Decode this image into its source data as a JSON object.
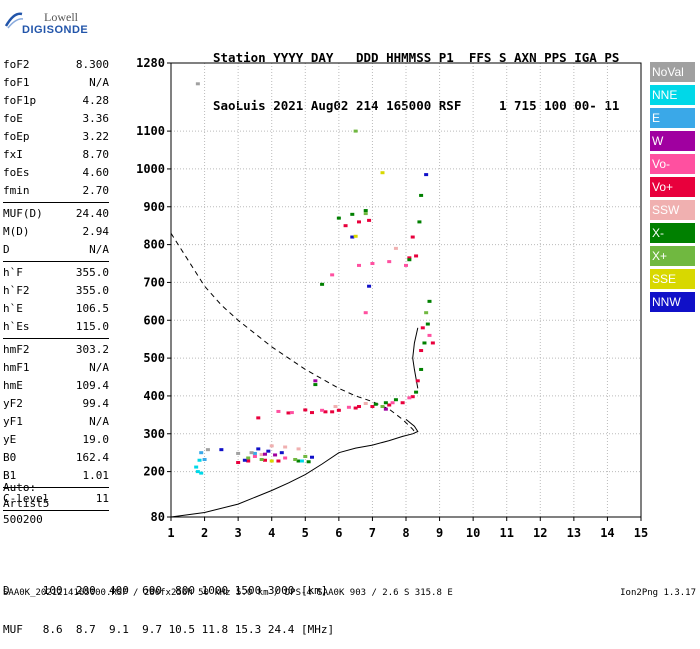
{
  "logo": {
    "line1": "Lowell",
    "line2": "DIGISONDE"
  },
  "header": {
    "line1": "Station YYYY DAY   DDD HHMMSS P1  FFS S AXN PPS IGA PS",
    "line2": "SaoLuis 2021 Aug02 214 165000 RSF     1 715 100 00- 11"
  },
  "params": [
    {
      "label": "foF2",
      "value": "8.300"
    },
    {
      "label": "foF1",
      "value": "N/A"
    },
    {
      "label": "foF1p",
      "value": "4.28"
    },
    {
      "label": "foE",
      "value": "3.36"
    },
    {
      "label": "foEp",
      "value": "3.22"
    },
    {
      "label": "fxI",
      "value": "8.70"
    },
    {
      "label": "foEs",
      "value": "4.60"
    },
    {
      "label": "fmin",
      "value": "2.70"
    },
    {
      "sep": true
    },
    {
      "label": "MUF(D)",
      "value": "24.40"
    },
    {
      "label": "M(D)",
      "value": "2.94"
    },
    {
      "label": "D",
      "value": "N/A"
    },
    {
      "sep": true
    },
    {
      "label": "h`F",
      "value": "355.0"
    },
    {
      "label": "h`F2",
      "value": "355.0"
    },
    {
      "label": "h`E",
      "value": "106.5"
    },
    {
      "label": "h`Es",
      "value": "115.0"
    },
    {
      "sep": true
    },
    {
      "label": "hmF2",
      "value": "303.2"
    },
    {
      "label": "hmF1",
      "value": "N/A"
    },
    {
      "label": "hmE",
      "value": "109.4"
    },
    {
      "label": "yF2",
      "value": "99.4"
    },
    {
      "label": "yF1",
      "value": "N/A"
    },
    {
      "label": "yE",
      "value": "19.0"
    },
    {
      "label": "B0",
      "value": "162.4"
    },
    {
      "label": "B1",
      "value": "1.01"
    },
    {
      "sep": true
    },
    {
      "label": "C-level",
      "value": "11"
    },
    {
      "sep": true
    }
  ],
  "auto": {
    "l1": "Auto:",
    "l2": "Artist5",
    "l3": "500200"
  },
  "legend": [
    {
      "label": "NoVal",
      "color": "#a0a0a0"
    },
    {
      "label": "NNE",
      "color": "#00d8e8"
    },
    {
      "label": "E",
      "color": "#3aa8e8"
    },
    {
      "label": "W",
      "color": "#a000a0"
    },
    {
      "label": "Vo-",
      "color": "#ff50a0"
    },
    {
      "label": "Vo+",
      "color": "#e8003c"
    },
    {
      "label": "SSW",
      "color": "#f0b0b0"
    },
    {
      "label": "X-",
      "color": "#008000"
    },
    {
      "label": "X+",
      "color": "#70b840"
    },
    {
      "label": "SSE",
      "color": "#d8d800"
    },
    {
      "label": "NNW",
      "color": "#1010c8"
    }
  ],
  "muf": {
    "line1": "D     100  200  400  600  800 1000 1500 3000 [km]",
    "line2": "MUF   8.6  8.7  9.1  9.7 10.5 11.8 15.3 24.4 [MHz]"
  },
  "footer": "SAA0K_2021214165000.RSF / 280fx256h 50 kHz 5.0 km / DPS-4 SAA0K 903 / 2.6 S 315.8 E",
  "version": "Ion2Png 1.3.17",
  "chart_data": {
    "type": "scatter",
    "x_ticks": [
      1,
      2,
      3,
      4,
      5,
      6,
      7,
      8,
      9,
      10,
      11,
      12,
      13,
      14,
      15
    ],
    "y_ticks": [
      80,
      200,
      300,
      400,
      500,
      600,
      700,
      800,
      900,
      1000,
      1100,
      1280
    ],
    "xlim": [
      1,
      15
    ],
    "ylim": [
      80,
      1280
    ],
    "grid": true,
    "series": [
      {
        "name": "Vo+",
        "points": [
          [
            3.6,
            342
          ],
          [
            4.5,
            355
          ],
          [
            5.2,
            356
          ],
          [
            5.6,
            358
          ],
          [
            6.0,
            362
          ],
          [
            6.5,
            368
          ],
          [
            7.0,
            372
          ],
          [
            7.5,
            376
          ],
          [
            7.9,
            382
          ],
          [
            8.2,
            398
          ],
          [
            8.35,
            440
          ],
          [
            8.45,
            520
          ],
          [
            8.5,
            580
          ],
          [
            5.0,
            363
          ],
          [
            5.8,
            358
          ],
          [
            6.6,
            372
          ],
          [
            3.0,
            224
          ],
          [
            3.3,
            228
          ],
          [
            3.8,
            230
          ],
          [
            4.2,
            228
          ],
          [
            6.2,
            850
          ],
          [
            6.6,
            860
          ],
          [
            6.9,
            864
          ],
          [
            8.2,
            820
          ],
          [
            8.3,
            770
          ],
          [
            8.1,
            765
          ],
          [
            8.8,
            540
          ]
        ]
      },
      {
        "name": "X-",
        "points": [
          [
            8.3,
            410
          ],
          [
            8.45,
            470
          ],
          [
            8.55,
            540
          ],
          [
            8.65,
            590
          ],
          [
            8.7,
            650
          ],
          [
            8.4,
            860
          ],
          [
            8.45,
            930
          ],
          [
            7.1,
            378
          ],
          [
            7.4,
            382
          ],
          [
            7.7,
            390
          ],
          [
            4.8,
            228
          ],
          [
            5.1,
            226
          ],
          [
            5.3,
            430
          ],
          [
            6.0,
            870
          ],
          [
            6.4,
            880
          ],
          [
            6.8,
            890
          ],
          [
            5.5,
            695
          ],
          [
            8.1,
            760
          ]
        ]
      },
      {
        "name": "Vo-",
        "points": [
          [
            4.2,
            359
          ],
          [
            4.6,
            356
          ],
          [
            5.5,
            362
          ],
          [
            6.3,
            370
          ],
          [
            7.6,
            382
          ],
          [
            8.1,
            395
          ],
          [
            6.6,
            745
          ],
          [
            7.0,
            750
          ],
          [
            7.5,
            755
          ],
          [
            8.0,
            745
          ],
          [
            6.8,
            620
          ],
          [
            3.5,
            240
          ],
          [
            4.4,
            236
          ],
          [
            5.8,
            720
          ],
          [
            8.7,
            560
          ]
        ]
      },
      {
        "name": "SSW",
        "points": [
          [
            4.0,
            268
          ],
          [
            4.4,
            265
          ],
          [
            4.8,
            260
          ],
          [
            5.9,
            372
          ],
          [
            6.8,
            380
          ],
          [
            7.7,
            790
          ],
          [
            3.7,
            245
          ]
        ]
      },
      {
        "name": "NNW",
        "points": [
          [
            3.6,
            260
          ],
          [
            3.9,
            254
          ],
          [
            4.3,
            250
          ],
          [
            3.2,
            230
          ],
          [
            2.5,
            258
          ],
          [
            5.2,
            238
          ],
          [
            6.9,
            690
          ],
          [
            8.6,
            985
          ],
          [
            6.4,
            820
          ]
        ]
      },
      {
        "name": "X+",
        "points": [
          [
            3.3,
            236
          ],
          [
            3.7,
            232
          ],
          [
            4.7,
            232
          ],
          [
            5.0,
            240
          ],
          [
            6.5,
            1100
          ],
          [
            6.8,
            882
          ],
          [
            7.3,
            372
          ],
          [
            8.6,
            620
          ]
        ]
      },
      {
        "name": "NNE",
        "points": [
          [
            1.8,
            200
          ],
          [
            1.9,
            196
          ],
          [
            1.85,
            230
          ],
          [
            1.75,
            212
          ],
          [
            4.9,
            228
          ]
        ]
      },
      {
        "name": "E",
        "points": [
          [
            1.9,
            250
          ],
          [
            2.0,
            232
          ],
          [
            3.5,
            248
          ]
        ]
      },
      {
        "name": "W",
        "points": [
          [
            3.8,
            246
          ],
          [
            4.1,
            244
          ],
          [
            5.3,
            440
          ],
          [
            7.4,
            365
          ]
        ]
      },
      {
        "name": "SSE",
        "points": [
          [
            7.3,
            990
          ],
          [
            6.5,
            822
          ],
          [
            4.0,
            228
          ]
        ]
      },
      {
        "name": "NoVal",
        "points": [
          [
            1.8,
            1225
          ],
          [
            2.1,
            258
          ],
          [
            3.0,
            248
          ],
          [
            3.4,
            250
          ]
        ]
      }
    ],
    "traces": [
      {
        "style": "solid",
        "role": "trace",
        "points": [
          [
            8.35,
            420
          ],
          [
            8.25,
            470
          ],
          [
            8.2,
            500
          ],
          [
            8.25,
            540
          ],
          [
            8.35,
            580
          ]
        ]
      },
      {
        "style": "solid",
        "role": "true height profile",
        "points": [
          [
            1,
            80
          ],
          [
            2,
            92
          ],
          [
            3,
            114
          ],
          [
            4,
            150
          ],
          [
            4.5,
            170
          ],
          [
            5,
            192
          ],
          [
            5.5,
            220
          ],
          [
            6,
            250
          ],
          [
            6.5,
            262
          ],
          [
            7,
            270
          ],
          [
            7.5,
            282
          ],
          [
            7.9,
            293
          ],
          [
            8.2,
            300
          ],
          [
            8.35,
            306
          ],
          [
            8.25,
            320
          ],
          [
            8.0,
            338
          ]
        ]
      },
      {
        "style": "dashed",
        "role": "MUF curve",
        "points": [
          [
            1,
            830
          ],
          [
            1.5,
            760
          ],
          [
            2,
            690
          ],
          [
            2.5,
            640
          ],
          [
            3,
            600
          ],
          [
            3.5,
            565
          ],
          [
            4,
            530
          ],
          [
            4.5,
            500
          ],
          [
            5,
            470
          ],
          [
            5.5,
            445
          ],
          [
            6,
            420
          ],
          [
            6.5,
            400
          ],
          [
            7,
            385
          ],
          [
            7.5,
            365
          ],
          [
            7.9,
            338
          ],
          [
            8.2,
            312
          ],
          [
            8.3,
            300
          ]
        ]
      }
    ]
  }
}
